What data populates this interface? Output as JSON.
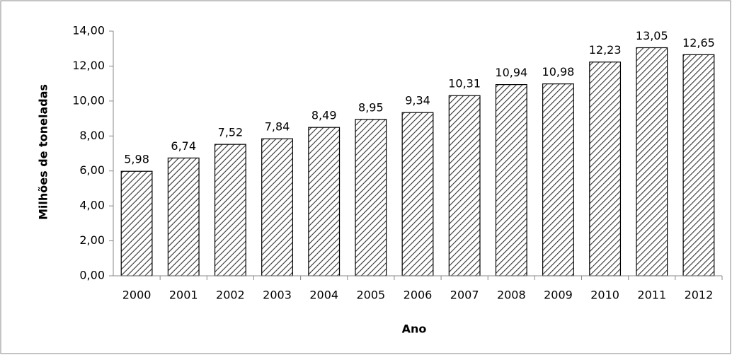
{
  "chart_data": {
    "type": "bar",
    "x_label": "Ano",
    "y_label": "Milhões de toneladas",
    "categories": [
      "2000",
      "2001",
      "2002",
      "2003",
      "2004",
      "2005",
      "2006",
      "2007",
      "2008",
      "2009",
      "2010",
      "2011",
      "2012"
    ],
    "values": [
      5.98,
      6.74,
      7.52,
      7.84,
      8.49,
      8.95,
      9.34,
      10.31,
      10.94,
      10.98,
      12.23,
      13.05,
      12.65
    ],
    "value_labels": [
      "5,98",
      "6,74",
      "7,52",
      "7,84",
      "8,49",
      "8,95",
      "9,34",
      "10,31",
      "10,94",
      "10,98",
      "12,23",
      "13,05",
      "12,65"
    ],
    "color": "#333333",
    "ylim": [
      0,
      14
    ],
    "yticks": [
      {
        "value": 0,
        "label": "0,00"
      },
      {
        "value": 2,
        "label": "2,00"
      },
      {
        "value": 4,
        "label": "4,00"
      },
      {
        "value": 6,
        "label": "6,00"
      },
      {
        "value": 8,
        "label": "8,00"
      },
      {
        "value": 10,
        "label": "10,00"
      },
      {
        "value": 12,
        "label": "12,00"
      },
      {
        "value": 14,
        "label": "14,00"
      }
    ],
    "grid": false
  }
}
